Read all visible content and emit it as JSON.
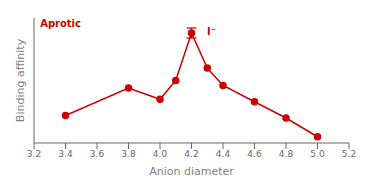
{
  "chart_data": {
    "type": "line",
    "xlabel": "Anion diameter",
    "ylabel": "Binding affinity",
    "x": [
      3.4,
      3.8,
      4.0,
      4.1,
      4.2,
      4.3,
      4.4,
      4.6,
      4.8,
      5.0
    ],
    "series": [
      {
        "values": [
          0.22,
          0.44,
          0.35,
          0.5,
          0.88,
          0.6,
          0.46,
          0.33,
          0.2,
          0.05
        ],
        "yerr": [
          null,
          null,
          null,
          null,
          0.04,
          null,
          null,
          null,
          null,
          null
        ],
        "color": "#cc0000",
        "marker": "circle",
        "line_style": "solid"
      }
    ],
    "xlim": [
      3.2,
      5.2
    ],
    "ylim": [
      0.0,
      1.0
    ],
    "xticks": [
      3.2,
      3.4,
      3.6,
      3.8,
      {
        "value": 4.0,
        "label": "4.0"
      },
      4.2,
      4.4,
      4.6,
      4.8,
      {
        "value": 5.0,
        "label": "5.0"
      },
      5.2
    ],
    "tick_labels": "x",
    "grid": false,
    "annotations": [
      {
        "text": "I⁻",
        "x": 4.28,
        "y": 0.89,
        "color": "#cc0000"
      },
      {
        "text": "Aprotic",
        "x": 3.22,
        "y": 0.96,
        "color": "#cc0000"
      }
    ]
  }
}
